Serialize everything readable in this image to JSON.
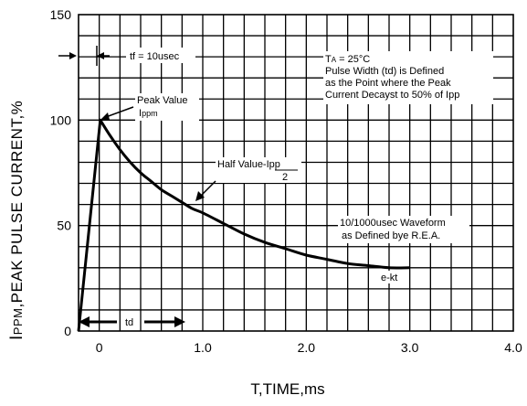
{
  "chart_data": {
    "type": "line",
    "ylabel": "IPPM,PEAK PULSE  CURRENT,%",
    "ylabel_parts": {
      "big": "I",
      "small": "PPM",
      "rest": ",PEAK PULSE  CURRENT,%"
    },
    "xlabel": "T,TIME,ms",
    "xlim": [
      -0.2,
      4.0
    ],
    "ylim": [
      0,
      150
    ],
    "x_ticks": [
      "0",
      "1.0",
      "2.0",
      "3.0",
      "4.0"
    ],
    "x_tick_values": [
      0,
      1.0,
      2.0,
      3.0,
      4.0
    ],
    "y_ticks": [
      "0",
      "50",
      "100",
      "150"
    ],
    "y_tick_values": [
      0,
      50,
      100,
      150
    ],
    "grid": true,
    "series": [
      {
        "x": [
          -0.2,
          0.01,
          0.1,
          0.2,
          0.3,
          0.4,
          0.5,
          0.6,
          0.7,
          0.8,
          0.9,
          1.0,
          1.2,
          1.4,
          1.6,
          1.8,
          2.0,
          2.2,
          2.4,
          2.6,
          2.8,
          3.0
        ],
        "y": [
          0,
          100,
          93,
          86,
          80,
          75,
          71,
          67,
          64,
          61,
          58,
          56,
          51,
          46,
          42,
          39,
          36,
          34,
          32,
          31,
          30,
          30
        ]
      }
    ],
    "annotations": {
      "tf": "tf = 10usec",
      "ta_big": "T",
      "ta_small": "A",
      "ta_rest": " = 25°C",
      "pulse_lines": [
        "Pulse Width (td) is Defined",
        "as the Point where the Peak",
        "Current Decayst to 50% of Ipp"
      ],
      "peak_value": "Peak Value",
      "ippm_big": "I",
      "ippm_small": "ppm",
      "half_value": "Half Value-Ipp",
      "half_denominator": "2",
      "waveform_lines": [
        "10/1000usec Waveform",
        "as Defined bye R.E.A."
      ],
      "ekt": "e-kt",
      "td": "td"
    }
  }
}
